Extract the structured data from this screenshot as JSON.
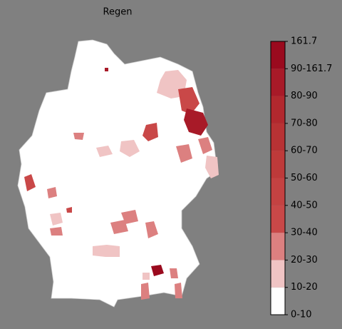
{
  "title": "Regen",
  "colorbar": {
    "labels": [
      "0-10",
      "10-20",
      "20-30",
      "30-40",
      "40-50",
      "50-60",
      "60-70",
      "70-80",
      "80-90",
      "90-161.7",
      "161.7"
    ],
    "colors": [
      "#ffffff",
      "#f0c4c4",
      "#dc8080",
      "#c94848",
      "#c44242",
      "#be3a3a",
      "#b83234",
      "#b2282e",
      "#a81a28",
      "#9a0a1e"
    ]
  }
}
